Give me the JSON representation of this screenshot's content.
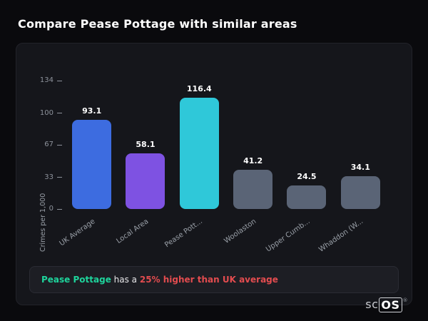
{
  "page": {
    "title": "Compare Pease Pottage with similar areas"
  },
  "chart_data": {
    "type": "bar",
    "title": "",
    "xlabel": "",
    "ylabel": "Crimes per 1,000",
    "categories": [
      "UK Average",
      "Local Area",
      "Pease Pott...",
      "Woolaston",
      "Upper Cumb...",
      "Whaddon (W..."
    ],
    "values": [
      93.1,
      58.1,
      116.4,
      41.2,
      24.5,
      34.1
    ],
    "value_labels": [
      "93.1",
      "58.1",
      "116.4",
      "41.2",
      "24.5",
      "34.1"
    ],
    "bar_colors": [
      "#3d6ce0",
      "#7e52e2",
      "#2fc8d9",
      "#5a6476",
      "#5a6476",
      "#5a6476"
    ],
    "yticks": [
      0,
      33,
      67,
      100,
      134
    ],
    "ylim": [
      0,
      134
    ],
    "grid": false,
    "legend": false
  },
  "note": {
    "highlight": "Pease Pottage",
    "middle": " has a ",
    "stat": "25% higher than UK average",
    "highlight_color": "#1ed49c",
    "stat_color": "#e34c4f"
  },
  "watermark": {
    "prefix": "sc",
    "suffix": "OS",
    "registered": "®"
  }
}
